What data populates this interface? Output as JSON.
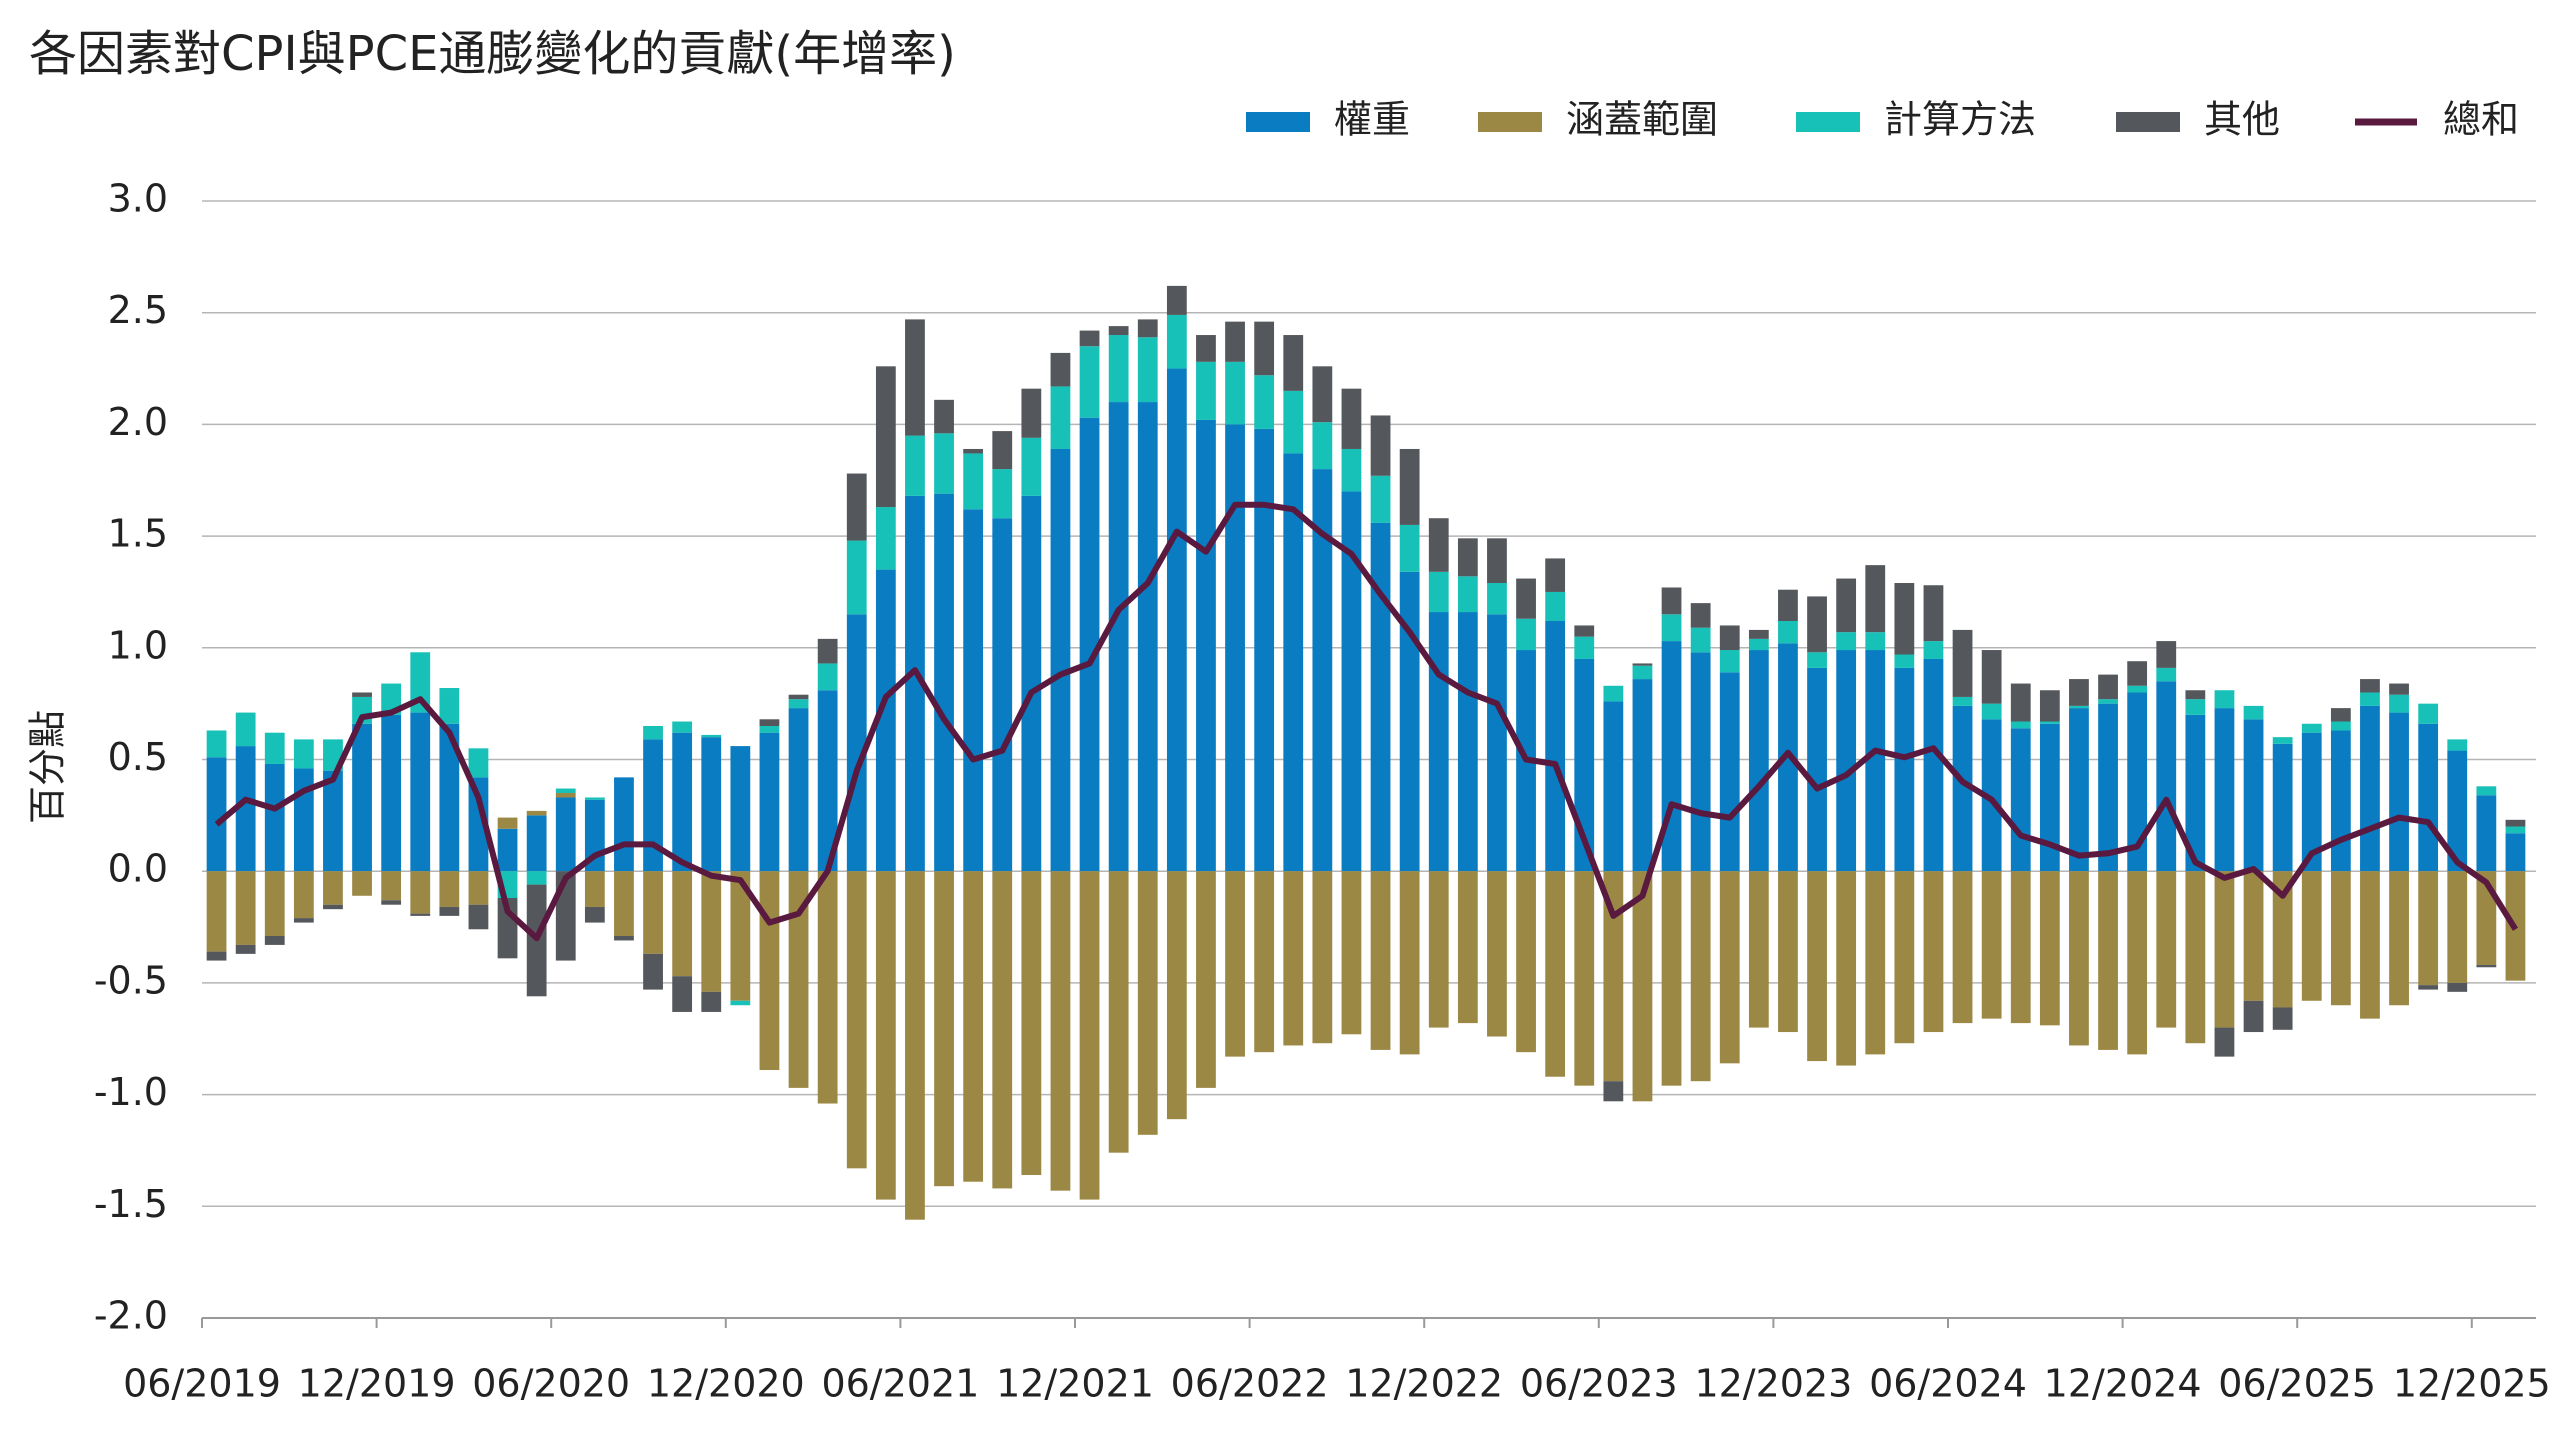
{
  "chart_data": {
    "type": "bar",
    "stacked": true,
    "title": "各因素對CPI與PCE通膨變化的貢獻(年增率)",
    "ylabel": "百分點",
    "legend": "top-right",
    "grid": true,
    "categories": [
      "06/2019",
      null,
      null,
      null,
      null,
      null,
      "12/2019",
      null,
      null,
      null,
      null,
      null,
      "06/2020",
      null,
      null,
      null,
      null,
      null,
      "12/2020",
      null,
      null,
      null,
      null,
      null,
      "06/2021",
      null,
      null,
      null,
      null,
      null,
      "12/2021",
      null,
      null,
      null,
      null,
      null,
      "06/2022",
      null,
      null,
      null,
      null,
      null,
      "12/2022",
      null,
      null,
      null,
      null,
      null,
      "06/2023",
      null,
      null,
      null,
      null,
      null,
      "12/2023",
      null,
      null,
      null,
      null,
      null,
      "06/2024",
      null,
      null,
      null,
      null,
      null,
      "12/2024",
      null,
      null,
      null,
      null,
      null,
      "06/2025",
      null,
      null,
      null,
      null,
      null,
      "12/2025",
      null
    ],
    "ylim": [
      -2,
      3
    ],
    "yticks": [
      {
        "value": -2,
        "label": "-2.0"
      },
      -1.5,
      {
        "value": -1,
        "label": "-1.0"
      },
      -0.5,
      {
        "value": 0,
        "label": "0.0"
      },
      0.5,
      {
        "value": 1,
        "label": "1.0"
      },
      1.5,
      {
        "value": 2,
        "label": "2.0"
      },
      2.5,
      {
        "value": 3,
        "label": "3.0"
      }
    ],
    "series": [
      {
        "name": "權重",
        "color": "#0a7cc1",
        "values": [
          0.51,
          0.56,
          0.48,
          0.46,
          0.45,
          0.66,
          0.7,
          0.71,
          0.66,
          0.42,
          0.19,
          0.25,
          0.33,
          0.32,
          0.42,
          0.59,
          0.62,
          0.6,
          0.56,
          0.62,
          0.73,
          0.81,
          1.15,
          1.35,
          1.68,
          1.69,
          1.62,
          1.58,
          1.68,
          1.89,
          2.03,
          2.1,
          2.1,
          2.25,
          2.02,
          2.0,
          1.98,
          1.87,
          1.8,
          1.7,
          1.56,
          1.34,
          1.16,
          1.16,
          1.15,
          0.99,
          1.12,
          0.95,
          0.76,
          0.86,
          1.03,
          0.98,
          0.89,
          0.99,
          1.02,
          0.91,
          0.99,
          0.99,
          0.91,
          0.95,
          0.74,
          0.68,
          0.64,
          0.66,
          0.73,
          0.75,
          0.8,
          0.85,
          0.7,
          0.73,
          0.68,
          0.57,
          0.62,
          0.63,
          0.74,
          0.71,
          0.66,
          0.54,
          0.34,
          0.17
        ]
      },
      {
        "name": "涵蓋範圍",
        "color": "#9c8845",
        "values": [
          -0.36,
          -0.33,
          -0.29,
          -0.21,
          -0.15,
          -0.11,
          -0.13,
          -0.19,
          -0.16,
          -0.15,
          0.05,
          0.02,
          0.02,
          -0.16,
          -0.29,
          -0.37,
          -0.47,
          -0.54,
          -0.58,
          -0.89,
          -0.97,
          -1.04,
          -1.33,
          -1.47,
          -1.56,
          -1.41,
          -1.39,
          -1.42,
          -1.36,
          -1.43,
          -1.47,
          -1.26,
          -1.18,
          -1.11,
          -0.97,
          -0.83,
          -0.81,
          -0.78,
          -0.77,
          -0.73,
          -0.8,
          -0.82,
          -0.7,
          -0.68,
          -0.74,
          -0.81,
          -0.92,
          -0.96,
          -0.94,
          -1.03,
          -0.96,
          -0.94,
          -0.86,
          -0.7,
          -0.72,
          -0.85,
          -0.87,
          -0.82,
          -0.77,
          -0.72,
          -0.68,
          -0.66,
          -0.68,
          -0.69,
          -0.78,
          -0.8,
          -0.82,
          -0.7,
          -0.77,
          -0.7,
          -0.58,
          -0.61,
          -0.58,
          -0.6,
          -0.66,
          -0.6,
          -0.51,
          -0.5,
          -0.42,
          -0.49
        ]
      },
      {
        "name": "計算方法",
        "color": "#17c1b8",
        "values": [
          0.12,
          0.15,
          0.14,
          0.13,
          0.14,
          0.12,
          0.14,
          0.27,
          0.16,
          0.13,
          -0.12,
          -0.06,
          0.02,
          0.01,
          0,
          0.06,
          0.05,
          0.01,
          -0.02,
          0.03,
          0.04,
          0.12,
          0.33,
          0.28,
          0.27,
          0.27,
          0.25,
          0.22,
          0.26,
          0.28,
          0.32,
          0.3,
          0.29,
          0.24,
          0.26,
          0.28,
          0.24,
          0.28,
          0.21,
          0.19,
          0.21,
          0.21,
          0.18,
          0.16,
          0.14,
          0.14,
          0.13,
          0.1,
          0.07,
          0.06,
          0.12,
          0.11,
          0.1,
          0.05,
          0.1,
          0.07,
          0.08,
          0.08,
          0.06,
          0.08,
          0.04,
          0.07,
          0.03,
          0.01,
          0.01,
          0.02,
          0.03,
          0.06,
          0.07,
          0.08,
          0.06,
          0.03,
          0.04,
          0.04,
          0.06,
          0.08,
          0.09,
          0.05,
          0.04,
          0.03
        ]
      },
      {
        "name": "其他",
        "color": "#54575b",
        "values": [
          -0.04,
          -0.04,
          -0.04,
          -0.02,
          -0.02,
          0.02,
          -0.02,
          -0.01,
          -0.04,
          -0.11,
          -0.27,
          -0.5,
          -0.4,
          -0.07,
          -0.02,
          -0.16,
          -0.16,
          -0.09,
          0,
          0.03,
          0.02,
          0.11,
          0.3,
          0.63,
          0.52,
          0.15,
          0.02,
          0.17,
          0.22,
          0.15,
          0.07,
          0.04,
          0.08,
          0.13,
          0.12,
          0.18,
          0.24,
          0.25,
          0.25,
          0.27,
          0.27,
          0.34,
          0.24,
          0.17,
          0.2,
          0.18,
          0.15,
          0.05,
          -0.09,
          0.01,
          0.12,
          0.11,
          0.11,
          0.04,
          0.14,
          0.25,
          0.24,
          0.3,
          0.32,
          0.25,
          0.3,
          0.24,
          0.17,
          0.14,
          0.12,
          0.11,
          0.11,
          0.12,
          0.04,
          -0.13,
          -0.14,
          -0.1,
          0,
          0.06,
          0.06,
          0.05,
          -0.02,
          -0.04,
          -0.01,
          0.03
        ]
      },
      {
        "name": "總和",
        "type": "line",
        "color": "#5a1a40",
        "values": [
          0.21,
          0.32,
          0.28,
          0.36,
          0.41,
          0.69,
          0.71,
          0.77,
          0.62,
          0.33,
          -0.18,
          -0.3,
          -0.03,
          0.07,
          0.12,
          0.12,
          0.04,
          -0.02,
          -0.04,
          -0.23,
          -0.19,
          0,
          0.45,
          0.78,
          0.9,
          0.68,
          0.5,
          0.54,
          0.8,
          0.88,
          0.93,
          1.17,
          1.29,
          1.52,
          1.43,
          1.64,
          1.64,
          1.62,
          1.51,
          1.42,
          1.24,
          1.07,
          0.88,
          0.8,
          0.75,
          0.5,
          0.48,
          0.14,
          -0.2,
          -0.11,
          0.3,
          0.26,
          0.24,
          0.38,
          0.53,
          0.37,
          0.43,
          0.54,
          0.51,
          0.55,
          0.4,
          0.32,
          0.16,
          0.12,
          0.07,
          0.08,
          0.11,
          0.32,
          0.04,
          -0.03,
          0.01,
          -0.11,
          0.08,
          0.14,
          0.19,
          0.24,
          0.22,
          0.04,
          -0.05,
          -0.26
        ]
      }
    ]
  }
}
